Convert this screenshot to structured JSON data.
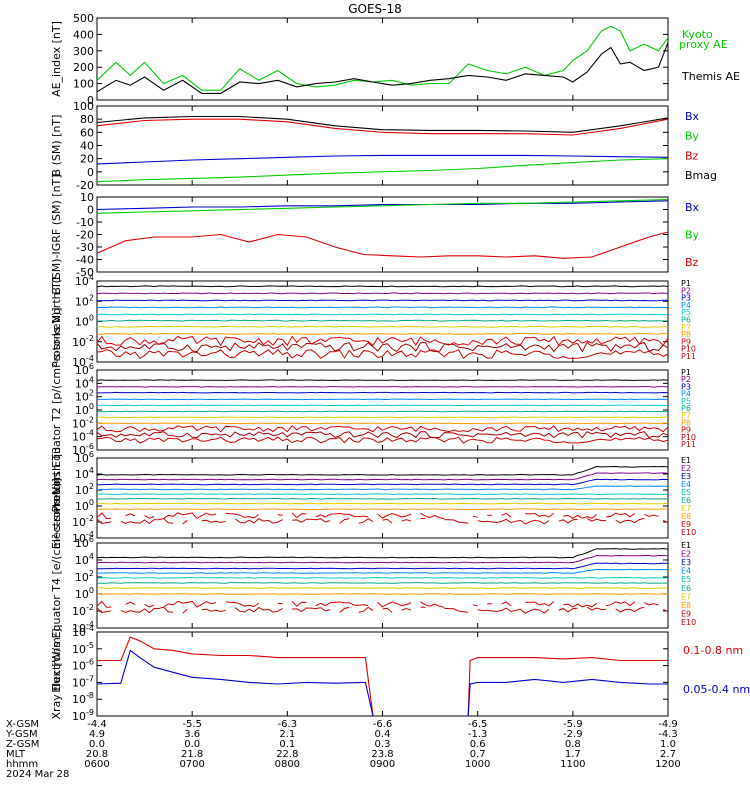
{
  "title": "GOES-18",
  "chart_data": [
    {
      "type": "line",
      "ylabel": "AE_index [nT]",
      "ylim": [
        0,
        500
      ],
      "yscale": "linear",
      "yticks": [
        "0",
        "100",
        "200",
        "300",
        "400",
        "500"
      ],
      "yticklines": [
        0,
        100,
        200,
        300,
        400,
        500
      ],
      "series": [
        {
          "name": "Kyoto proxy AE",
          "color": "#00cc00",
          "x": [
            6.0,
            6.2,
            6.35,
            6.5,
            6.7,
            6.9,
            7.1,
            7.3,
            7.5,
            7.7,
            7.9,
            8.1,
            8.3,
            8.5,
            8.7,
            8.9,
            9.1,
            9.3,
            9.5,
            9.7,
            9.9,
            10.1,
            10.3,
            10.5,
            10.7,
            10.9,
            11.0,
            11.15,
            11.3,
            11.4,
            11.5,
            11.6,
            11.75,
            11.9,
            12.0
          ],
          "values": [
            120,
            230,
            150,
            230,
            100,
            150,
            60,
            60,
            190,
            120,
            180,
            100,
            80,
            90,
            120,
            110,
            120,
            90,
            100,
            100,
            220,
            180,
            160,
            200,
            150,
            180,
            240,
            300,
            420,
            450,
            420,
            300,
            340,
            300,
            380
          ]
        },
        {
          "name": "Themis AE",
          "color": "#000000",
          "x": [
            6.0,
            6.2,
            6.35,
            6.5,
            6.7,
            6.9,
            7.1,
            7.3,
            7.5,
            7.7,
            7.9,
            8.1,
            8.3,
            8.5,
            8.7,
            8.9,
            9.1,
            9.3,
            9.5,
            9.7,
            9.9,
            10.1,
            10.3,
            10.5,
            10.7,
            10.9,
            11.0,
            11.15,
            11.3,
            11.4,
            11.5,
            11.6,
            11.75,
            11.9,
            12.0
          ],
          "values": [
            50,
            120,
            90,
            140,
            60,
            120,
            40,
            40,
            110,
            100,
            120,
            80,
            100,
            110,
            130,
            110,
            90,
            100,
            120,
            130,
            150,
            140,
            120,
            160,
            150,
            140,
            110,
            170,
            280,
            320,
            220,
            230,
            180,
            200,
            350
          ]
        }
      ],
      "legend": [
        {
          "text": "Kyoto",
          "color": "#00cc00"
        },
        {
          "text": "proxy AE",
          "color": "#00cc00"
        },
        {
          "text": "Themis AE",
          "color": "#000000"
        }
      ]
    },
    {
      "type": "line",
      "ylabel": "B (SM) [nT]",
      "ylim": [
        -20,
        100
      ],
      "yscale": "linear",
      "yticks": [
        "-20",
        "0",
        "20",
        "40",
        "60",
        "80",
        "100"
      ],
      "yticklines": [
        -20,
        0,
        20,
        40,
        60,
        80,
        100
      ],
      "series": [
        {
          "name": "Bmag",
          "color": "#000000",
          "x": [
            6.0,
            6.5,
            7.0,
            7.5,
            8.0,
            8.5,
            9.0,
            9.5,
            10.0,
            10.5,
            11.0,
            11.5,
            12.0
          ],
          "values": [
            75,
            82,
            84,
            84,
            80,
            70,
            64,
            63,
            63,
            62,
            60,
            70,
            82
          ]
        },
        {
          "name": "Bx",
          "color": "#0000cc",
          "x": [
            6.0,
            6.5,
            7.0,
            7.5,
            8.0,
            8.5,
            9.0,
            9.5,
            10.0,
            10.5,
            11.0,
            11.5,
            12.0
          ],
          "values": [
            12,
            15,
            18,
            20,
            22,
            24,
            25,
            25,
            25,
            25,
            24,
            23,
            22
          ]
        },
        {
          "name": "By",
          "color": "#00cc00",
          "x": [
            6.0,
            6.5,
            7.0,
            7.5,
            8.0,
            8.5,
            9.0,
            9.5,
            10.0,
            10.5,
            11.0,
            11.5,
            12.0
          ],
          "values": [
            -15,
            -12,
            -10,
            -8,
            -5,
            -2,
            0,
            2,
            5,
            10,
            14,
            18,
            20
          ]
        },
        {
          "name": "Bz",
          "color": "#dd0000",
          "x": [
            6.0,
            6.5,
            7.0,
            7.5,
            8.0,
            8.5,
            9.0,
            9.5,
            10.0,
            10.5,
            11.0,
            11.5,
            12.0
          ],
          "values": [
            70,
            78,
            80,
            80,
            76,
            66,
            60,
            58,
            58,
            58,
            56,
            66,
            80
          ]
        }
      ],
      "legend": [
        {
          "text": "Bx",
          "color": "#0000cc"
        },
        {
          "text": "By",
          "color": "#00cc00"
        },
        {
          "text": "Bz",
          "color": "#dd0000"
        },
        {
          "text": "Bmag",
          "color": "#000000"
        }
      ]
    },
    {
      "type": "line",
      "ylabel": "B (SM)-IGRF (SM) [nT]",
      "ylim": [
        -50,
        10
      ],
      "yscale": "linear",
      "yticks": [
        "-50",
        "-40",
        "-30",
        "-20",
        "-10",
        "0",
        "10"
      ],
      "yticklines": [
        -50,
        -40,
        -30,
        -20,
        -10,
        0,
        10
      ],
      "series": [
        {
          "name": "Bx",
          "color": "#0000cc",
          "x": [
            6.0,
            6.5,
            7.0,
            7.5,
            8.0,
            8.5,
            9.0,
            9.5,
            10.0,
            10.5,
            11.0,
            11.5,
            12.0
          ],
          "values": [
            0,
            1,
            2,
            2,
            3,
            3,
            4,
            4,
            4,
            5,
            5,
            6,
            7
          ]
        },
        {
          "name": "By",
          "color": "#00cc00",
          "x": [
            6.0,
            6.5,
            7.0,
            7.5,
            8.0,
            8.5,
            9.0,
            9.5,
            10.0,
            10.5,
            11.0,
            11.5,
            12.0
          ],
          "values": [
            -3,
            -2,
            -1,
            0,
            1,
            2,
            3,
            4,
            5,
            5,
            6,
            7,
            8
          ]
        },
        {
          "name": "Bz",
          "color": "#dd0000",
          "x": [
            6.0,
            6.3,
            6.6,
            7.0,
            7.3,
            7.6,
            7.9,
            8.2,
            8.5,
            8.8,
            9.1,
            9.4,
            9.7,
            10.0,
            10.3,
            10.6,
            10.9,
            11.2,
            11.5,
            11.8,
            12.0
          ],
          "values": [
            -35,
            -25,
            -22,
            -22,
            -20,
            -26,
            -20,
            -22,
            -30,
            -36,
            -37,
            -38,
            -37,
            -37,
            -38,
            -37,
            -39,
            -38,
            -30,
            -22,
            -18
          ]
        }
      ],
      "legend": [
        {
          "text": "Bx",
          "color": "#0000cc"
        },
        {
          "text": "By",
          "color": "#00cc00"
        },
        {
          "text": "Bz",
          "color": "#dd0000"
        }
      ]
    },
    {
      "type": "line",
      "ylabel": "Protons North T1",
      "ylim": [
        0.0001,
        10000
      ],
      "yscale": "log",
      "yticks": [
        "10^4",
        "10^2",
        "10^0",
        "10^-2",
        "10^-4"
      ],
      "yticklines": [
        10000,
        100,
        1,
        0.01,
        0.0001
      ],
      "levels": [
        3000,
        600,
        120,
        25,
        5,
        1.2,
        0.3,
        0.06,
        0.012,
        0.003,
        0.0006
      ],
      "series_names": [
        "P1",
        "P2",
        "P3",
        "P4",
        "P5",
        "P6",
        "P7",
        "P8",
        "P9",
        "P10",
        "P11"
      ],
      "colors": [
        "#000000",
        "#8b008b",
        "#0000cc",
        "#0088ff",
        "#00cccc",
        "#00aa88",
        "#ddcc00",
        "#ff9900",
        "#dd0000",
        "#aa0000",
        "#cc0000"
      ],
      "noisy_from": 8
    },
    {
      "type": "line",
      "ylabel": "Protons Equator T2 [p/(cm²-s-sr-keV)]",
      "ylim": [
        1e-06,
        1000000
      ],
      "yscale": "log",
      "yticks": [
        "10^6",
        "10^4",
        "10^2",
        "10^0",
        "10^-2",
        "10^-4",
        "10^-6"
      ],
      "yticklines": [
        1000000,
        10000,
        100,
        1,
        0.01,
        0.0001,
        1e-06
      ],
      "levels": [
        30000,
        3000,
        400,
        40,
        5,
        0.6,
        0.08,
        0.01,
        0.0015,
        0.0002,
        3e-05
      ],
      "series_names": [
        "P1",
        "P2",
        "P3",
        "P4",
        "P5",
        "P6",
        "P7",
        "P8",
        "P9",
        "P10",
        "P11"
      ],
      "colors": [
        "#000000",
        "#8b008b",
        "#0000cc",
        "#0088ff",
        "#00cccc",
        "#00aa88",
        "#ddcc00",
        "#ff9900",
        "#dd0000",
        "#aa0000",
        "#cc0000"
      ],
      "noisy_from": 8
    },
    {
      "type": "line",
      "ylabel": "Electrons North T3",
      "ylim": [
        0.0001,
        1000000
      ],
      "yscale": "log",
      "yticks": [
        "10^6",
        "10^4",
        "10^2",
        "10^0",
        "10^-2",
        "10^-4"
      ],
      "yticklines": [
        1000000,
        10000,
        100,
        1,
        0.01,
        0.0001
      ],
      "levels": [
        8000,
        2000,
        500,
        120,
        30,
        8,
        2,
        0.4,
        0.05,
        0.01
      ],
      "series_names": [
        "E1",
        "E2",
        "E3",
        "E4",
        "E5",
        "E6",
        "E7",
        "E8",
        "E9",
        "E10"
      ],
      "colors": [
        "#000000",
        "#8b008b",
        "#0000cc",
        "#0088ff",
        "#00cccc",
        "#00aa88",
        "#ddcc00",
        "#ff9900",
        "#dd0000",
        "#cc0000"
      ],
      "noisy_from": 8,
      "injection_from": 11.0
    },
    {
      "type": "line",
      "ylabel": "Electrons Equator T4 [e/(cm²-s-sr-keV)]",
      "ylim": [
        0.0001,
        1000000
      ],
      "yscale": "log",
      "yticks": [
        "10^6",
        "10^4",
        "10^2",
        "10^0",
        "10^-2",
        "10^-4"
      ],
      "yticklines": [
        1000000,
        10000,
        100,
        1,
        0.01,
        0.0001
      ],
      "levels": [
        20000,
        5000,
        1000,
        300,
        80,
        20,
        5,
        1,
        0.05,
        0.01
      ],
      "series_names": [
        "E1",
        "E2",
        "E3",
        "E4",
        "E5",
        "E6",
        "E7",
        "E8",
        "E9",
        "E10"
      ],
      "colors": [
        "#000000",
        "#8b008b",
        "#0000cc",
        "#0088ff",
        "#00cccc",
        "#00aa88",
        "#ddcc00",
        "#ff9900",
        "#dd0000",
        "#cc0000"
      ],
      "noisy_from": 8,
      "injection_from": 11.0
    },
    {
      "type": "line",
      "ylabel": "Xray flux [W/m²]",
      "ylim": [
        1e-09,
        0.0001
      ],
      "yscale": "log",
      "yticks": [
        "10^-4",
        "10^-5",
        "10^-6",
        "10^-7",
        "10^-8",
        "10^-9"
      ],
      "yticklines": [
        0.0001,
        1e-05,
        1e-06,
        1e-07,
        1e-08,
        1e-09
      ],
      "series": [
        {
          "name": "0.1-0.8 nm",
          "color": "#dd0000",
          "x": [
            6.0,
            6.25,
            6.35,
            6.45,
            6.6,
            6.8,
            7.0,
            7.3,
            7.6,
            7.9,
            8.2,
            8.5,
            8.8,
            8.82,
            8.9,
            null,
            9.9,
            9.92,
            10.0,
            10.3,
            10.6,
            10.9,
            11.2,
            11.5,
            11.8,
            12.0
          ],
          "values": [
            2e-06,
            2e-06,
            5e-05,
            3e-05,
            1e-05,
            8e-06,
            5e-06,
            4e-06,
            4e-06,
            3e-06,
            3e-06,
            3e-06,
            3e-06,
            3e-06,
            1e-09,
            null,
            1e-09,
            2e-06,
            3e-06,
            3e-06,
            3e-06,
            2.5e-06,
            3e-06,
            2e-06,
            2e-06,
            2e-06
          ]
        },
        {
          "name": "0.05-0.4 nm",
          "color": "#0000cc",
          "x": [
            6.0,
            6.25,
            6.35,
            6.45,
            6.6,
            6.8,
            7.0,
            7.3,
            7.6,
            7.9,
            8.2,
            8.5,
            8.8,
            8.82,
            8.9,
            null,
            9.9,
            9.92,
            10.0,
            10.3,
            10.6,
            10.9,
            11.2,
            11.5,
            11.8,
            12.0
          ],
          "values": [
            8e-08,
            9e-08,
            8e-06,
            3e-06,
            8e-07,
            4e-07,
            2e-07,
            1.5e-07,
            1e-07,
            8e-08,
            1e-07,
            9e-08,
            1e-07,
            1e-07,
            1e-09,
            null,
            1e-09,
            8e-08,
            1e-07,
            1e-07,
            1.5e-07,
            1e-07,
            1.5e-07,
            1e-07,
            8e-08,
            8e-08
          ]
        }
      ],
      "legend": [
        {
          "text": "0.1-0.8 nm",
          "color": "#dd0000"
        },
        {
          "text": "0.05-0.4 nm",
          "color": "#0000cc"
        }
      ]
    }
  ],
  "xaxis": {
    "xlim": [
      6.0,
      12.0
    ],
    "tick_positions": [
      6,
      7,
      8,
      9,
      10,
      11,
      12
    ],
    "row_labels": [
      "X-GSM",
      "Y-GSM",
      "Z-GSM",
      "MLT",
      "hhmm"
    ],
    "rows": [
      [
        "-4.4",
        "-5.5",
        "-6.3",
        "-6.6",
        "-6.5",
        "-5.9",
        "-4.9"
      ],
      [
        "4.9",
        "3.6",
        "2.1",
        "0.4",
        "-1.3",
        "-2.9",
        "-4.3"
      ],
      [
        "0.0",
        "0.0",
        "0.1",
        "0.3",
        "0.6",
        "0.8",
        "1.0"
      ],
      [
        "20.8",
        "21.8",
        "22.8",
        "23.8",
        "0.7",
        "1.7",
        "2.7"
      ],
      [
        "0600",
        "0700",
        "0800",
        "0900",
        "1000",
        "1100",
        "1200"
      ]
    ],
    "date": "2024 Mar 28"
  }
}
